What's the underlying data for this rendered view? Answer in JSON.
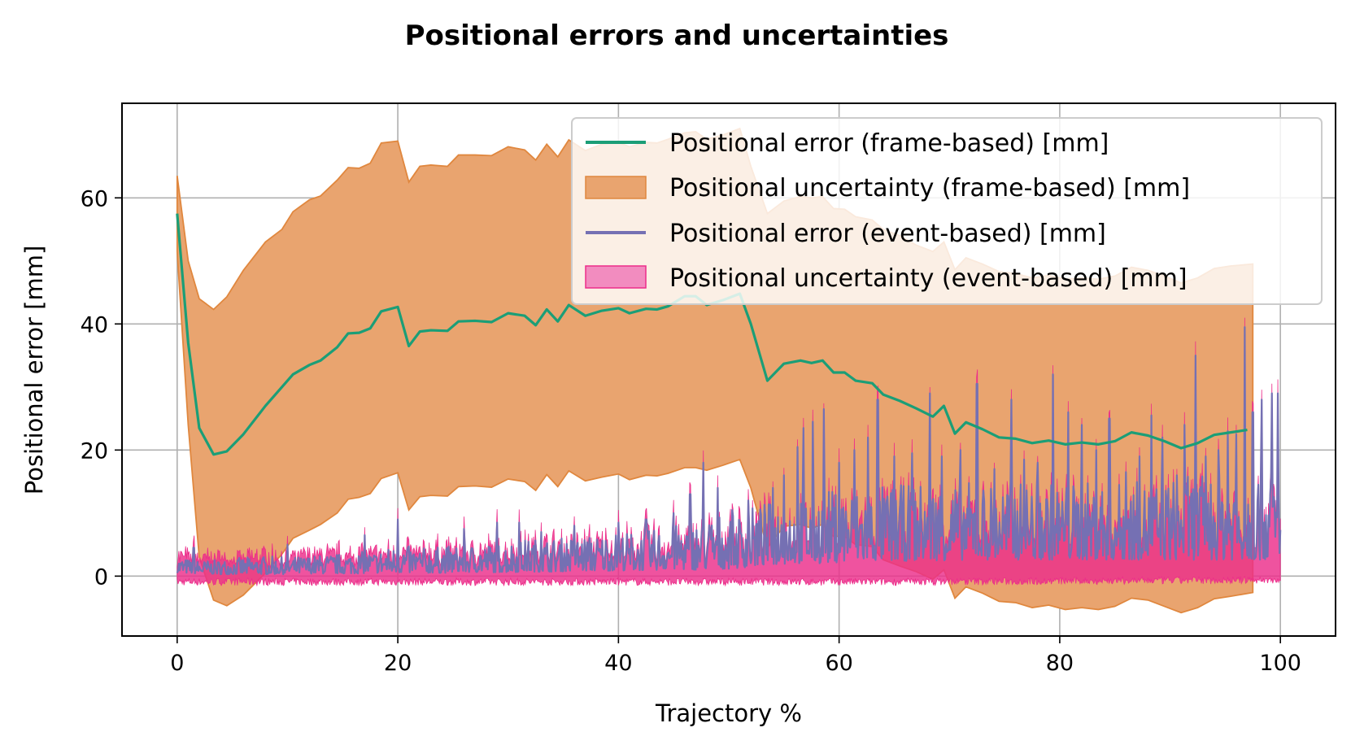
{
  "chart_data": {
    "type": "line",
    "title": "Positional errors and uncertainties",
    "xlabel": "Trajectory %",
    "ylabel": "Positional error [mm]",
    "xlim": [
      -5,
      105
    ],
    "ylim": [
      -9.5,
      75
    ],
    "xticks": [
      0,
      20,
      40,
      60,
      80,
      100
    ],
    "yticks": [
      0,
      20,
      40,
      60
    ],
    "grid": true,
    "legend_position": "top-right",
    "colors": {
      "frame_error": "#1b9e77",
      "frame_band": "#e9a46f",
      "frame_band_edge": "#e0873e",
      "event_error": "#7570b3",
      "event_band": "#ec2d8a"
    },
    "legend": [
      {
        "label": "Positional error (frame-based) [mm]",
        "kind": "line",
        "color": "#1b9e77"
      },
      {
        "label": "Positional uncertainty (frame-based) [mm]",
        "kind": "patch",
        "color": "#e9a46f"
      },
      {
        "label": "Positional error (event-based) [mm]",
        "kind": "line",
        "color": "#7570b3"
      },
      {
        "label": "Positional uncertainty (event-based) [mm]",
        "kind": "patch",
        "color": "#f28cbf"
      }
    ],
    "series": [
      {
        "name": "Positional error (frame-based) [mm]",
        "x": [
          0,
          1,
          2,
          3.3,
          4.5,
          6,
          8,
          9.5,
          10.5,
          12,
          13,
          14.5,
          15.5,
          16.5,
          17.5,
          18.5,
          20,
          21,
          22,
          23,
          24.5,
          25.5,
          27,
          28.5,
          30,
          31.5,
          32.5,
          33.5,
          34.5,
          35.5,
          37,
          38.5,
          40,
          41,
          42.5,
          43.5,
          44.5,
          46,
          47,
          48,
          49.5,
          51,
          52,
          53.5,
          55,
          56.5,
          57.5,
          58.5,
          59.5,
          60.5,
          61.5,
          63,
          64,
          65.5,
          67,
          68.5,
          69.5,
          70.5,
          71.5,
          73,
          74.5,
          76,
          77.5,
          79,
          80.5,
          82,
          83.5,
          85,
          86.5,
          88,
          89.5,
          91,
          92.5,
          94,
          95.5,
          97
        ],
        "y": [
          57.5,
          37,
          23.5,
          19.3,
          19.8,
          22.5,
          27,
          30,
          32,
          33.5,
          34.2,
          36.3,
          38.5,
          38.6,
          39.3,
          42,
          42.7,
          36.5,
          38.8,
          39,
          38.9,
          40.4,
          40.5,
          40.3,
          41.7,
          41.3,
          39.8,
          42.3,
          40.4,
          43,
          41.3,
          42.1,
          42.5,
          41.7,
          42.4,
          42.3,
          42.8,
          44.4,
          44.4,
          43,
          43.8,
          44.8,
          40,
          31,
          33.7,
          34.2,
          33.8,
          34.2,
          32.3,
          32.3,
          31,
          30.6,
          28.8,
          27.8,
          26.6,
          25.3,
          27,
          22.6,
          24.4,
          23.3,
          22,
          21.8,
          21.1,
          21.5,
          20.9,
          21.2,
          20.9,
          21.4,
          22.8,
          22.3,
          21.4,
          20.3,
          21.1,
          22.4,
          22.8,
          23.2
        ]
      },
      {
        "name": "Positional uncertainty (frame-based) [mm]",
        "x": [
          0,
          1,
          2,
          3.3,
          4.5,
          6,
          8,
          9.5,
          10.5,
          12,
          13,
          14.5,
          15.5,
          16.5,
          17.5,
          18.5,
          20,
          21,
          22,
          23,
          24.5,
          25.5,
          27,
          28.5,
          30,
          31.5,
          32.5,
          33.5,
          34.5,
          35.5,
          37,
          38.5,
          40,
          41,
          42.5,
          43.5,
          44.5,
          46,
          47,
          48,
          49.5,
          51,
          52,
          53.5,
          55,
          56.5,
          57.5,
          58.5,
          59.5,
          60.5,
          61.5,
          63,
          64,
          65.5,
          67,
          68.5,
          69.5,
          70.5,
          71.5,
          73,
          74.5,
          76,
          77.5,
          79,
          80.5,
          82,
          83.5,
          85,
          86.5,
          88,
          89.5,
          91,
          92.5,
          94,
          95.5,
          97.5
        ],
        "upper": [
          63.5,
          50,
          44,
          42.3,
          44.3,
          48.5,
          53,
          55,
          57.8,
          59.7,
          60.3,
          62.8,
          64.8,
          64.7,
          65.5,
          68.7,
          69,
          62.5,
          65,
          65.2,
          65,
          66.8,
          66.8,
          66.7,
          68.1,
          67.6,
          66,
          68.5,
          66.5,
          69.2,
          67.5,
          68.5,
          68.8,
          68.1,
          68.8,
          68.7,
          69.3,
          70.3,
          70.5,
          69.3,
          70,
          71,
          65,
          57.5,
          59.5,
          60.2,
          60,
          60.2,
          58.3,
          58.2,
          57,
          56.5,
          55,
          54,
          52.5,
          51.5,
          53,
          48.6,
          50.5,
          49.5,
          48.3,
          48,
          47.3,
          47.7,
          47.1,
          47.3,
          47.1,
          47.6,
          49,
          48.5,
          47.6,
          46.5,
          47.3,
          48.8,
          49.2,
          49.5
        ],
        "lower": [
          51.5,
          24,
          3,
          -3.8,
          -4.7,
          -3,
          0.5,
          3.5,
          6,
          7.3,
          8.2,
          10,
          12.2,
          12.5,
          13.1,
          15.5,
          16.4,
          10.5,
          12.6,
          12.8,
          12.7,
          14.2,
          14.3,
          14.1,
          15.4,
          15,
          13.6,
          16.1,
          14.2,
          16.7,
          15.1,
          15.7,
          16.2,
          15.3,
          16,
          15.9,
          16.3,
          17.2,
          17.2,
          16.8,
          17.6,
          18.5,
          14,
          4.5,
          7.9,
          8.2,
          7.6,
          8.2,
          6.3,
          6.3,
          5,
          4.7,
          2.6,
          1.6,
          0.7,
          -0.5,
          1,
          -3.5,
          -1.7,
          -2.7,
          -4,
          -4.2,
          -5,
          -4.6,
          -5.3,
          -5,
          -5.3,
          -4.8,
          -3.5,
          -3.8,
          -4.8,
          -5.8,
          -5,
          -3.6,
          -3.2,
          -2.6
        ]
      },
      {
        "name": "Positional error (event-based) [mm]",
        "x": [
          0,
          2,
          4,
          6,
          8,
          10,
          12,
          14,
          16,
          18,
          20,
          22,
          24,
          26,
          28,
          30,
          32,
          34,
          36,
          38,
          40,
          42,
          44,
          46,
          47.5,
          49,
          50.5,
          52,
          54,
          56,
          58,
          60,
          62,
          64,
          66,
          68,
          70,
          72,
          74,
          76,
          78,
          80,
          82,
          84,
          86,
          88,
          90,
          92,
          93,
          94,
          96,
          97,
          98,
          99,
          100
        ],
        "low": [
          0.5,
          0.4,
          0.3,
          0.3,
          0.3,
          0.3,
          0.4,
          0.4,
          0.4,
          0.5,
          0.5,
          0.5,
          0.5,
          0.6,
          0.6,
          0.6,
          0.7,
          0.7,
          0.8,
          0.8,
          0.9,
          0.9,
          1,
          1,
          1,
          1.1,
          1.2,
          1.5,
          1.8,
          2,
          2,
          2.2,
          2.2,
          2.4,
          2.4,
          2.5,
          2.5,
          2.6,
          2.6,
          2.6,
          2.6,
          2.6,
          2.6,
          2.6,
          2.6,
          2.6,
          2.6,
          2.6,
          2.6,
          2.6,
          2.6,
          2.6,
          2.6,
          2.6,
          2.6
        ],
        "high": [
          3,
          2.5,
          2.6,
          3,
          3.2,
          3,
          3.3,
          3.5,
          3.8,
          4,
          5,
          4.5,
          4.7,
          5,
          5.2,
          5.5,
          6,
          6,
          6.3,
          6.6,
          7,
          7.2,
          7.6,
          8.5,
          9,
          10,
          9.5,
          11,
          12,
          13,
          13.5,
          14,
          14,
          14.5,
          14.5,
          15,
          15,
          15,
          15,
          15,
          15,
          15,
          15,
          15,
          15,
          15,
          15.5,
          16,
          16,
          16,
          16.5,
          17,
          17,
          17,
          17
        ],
        "peaks": [
          [
            1.5,
            4.5
          ],
          [
            10,
            5
          ],
          [
            17,
            6.5
          ],
          [
            20,
            9
          ],
          [
            26,
            7.5
          ],
          [
            29,
            8.5
          ],
          [
            31,
            8.5
          ],
          [
            33,
            7
          ],
          [
            36,
            8
          ],
          [
            40,
            8.5
          ],
          [
            42.5,
            9
          ],
          [
            45,
            10
          ],
          [
            46.5,
            13
          ],
          [
            47.7,
            18
          ],
          [
            49,
            14
          ],
          [
            50.3,
            10.5
          ],
          [
            51.8,
            12
          ],
          [
            54,
            14
          ],
          [
            55,
            16
          ],
          [
            56.2,
            20.5
          ],
          [
            56.8,
            23.5
          ],
          [
            57.6,
            24.5
          ],
          [
            58.6,
            26.5
          ],
          [
            60,
            18
          ],
          [
            61.4,
            20
          ],
          [
            62.6,
            22
          ],
          [
            63.5,
            28
          ],
          [
            65,
            19
          ],
          [
            66.6,
            19.5
          ],
          [
            68.2,
            29
          ],
          [
            69.3,
            19
          ],
          [
            71,
            20
          ],
          [
            72.5,
            30.5
          ],
          [
            74.1,
            17
          ],
          [
            75.6,
            28
          ],
          [
            76.8,
            18.5
          ],
          [
            78,
            18
          ],
          [
            79.4,
            32
          ],
          [
            80.8,
            26
          ],
          [
            82,
            24
          ],
          [
            83.3,
            20
          ],
          [
            84.5,
            25
          ],
          [
            86,
            16.5
          ],
          [
            87.2,
            19
          ],
          [
            88.3,
            25.5
          ],
          [
            89.3,
            22
          ],
          [
            90.6,
            16
          ],
          [
            91.3,
            24
          ],
          [
            92.3,
            35
          ],
          [
            93.2,
            19
          ],
          [
            94.4,
            20
          ],
          [
            95.2,
            23
          ],
          [
            96,
            22.5
          ],
          [
            96.8,
            39.5
          ],
          [
            97.5,
            26
          ],
          [
            98.3,
            28
          ],
          [
            99.2,
            29
          ],
          [
            99.8,
            29
          ]
        ]
      },
      {
        "name": "Positional uncertainty (event-based) [mm]",
        "x": [
          0,
          20,
          50,
          64,
          100
        ],
        "lower": [
          -1.5,
          -1.5,
          -1.5,
          -1.5,
          -1.2
        ]
      }
    ]
  }
}
